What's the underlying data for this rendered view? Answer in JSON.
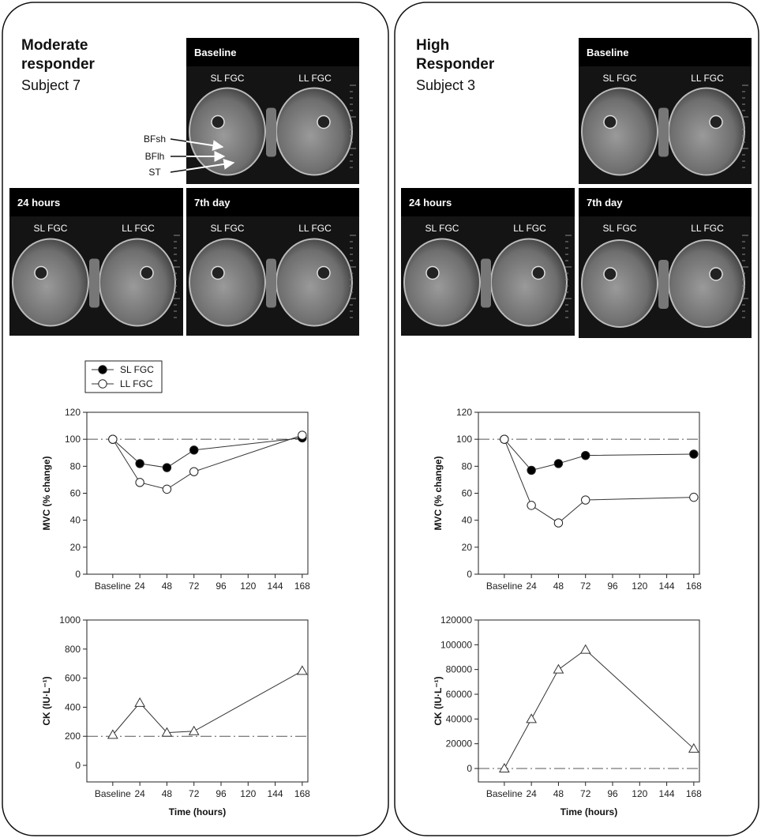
{
  "panels": [
    {
      "title": "Moderate responder",
      "subtitle": "Subject 7",
      "images": [
        {
          "label": "Baseline",
          "left": "SL FGC",
          "right": "LL FGC"
        },
        {
          "label": "24 hours",
          "left": "SL FGC",
          "right": "LL FGC"
        },
        {
          "label": "7th day",
          "left": "SL FGC",
          "right": "LL FGC"
        }
      ],
      "annotations": [
        "BFsh",
        "BFlh",
        "ST"
      ]
    },
    {
      "title": "High Responder",
      "subtitle": "Subject 3",
      "images": [
        {
          "label": "Baseline",
          "left": "SL FGC",
          "right": "LL FGC"
        },
        {
          "label": "24 hours",
          "left": "SL FGC",
          "right": "LL FGC"
        },
        {
          "label": "7th day",
          "left": "SL FGC",
          "right": "LL FGC"
        }
      ]
    }
  ],
  "chart_data": [
    {
      "type": "line",
      "ylabel": "MVC (% change)",
      "legend": true,
      "x": [
        0,
        24,
        48,
        72,
        168
      ],
      "series": [
        {
          "name": "SL FGC",
          "marker": "filled-circle",
          "values": [
            100,
            82,
            79,
            92,
            101
          ]
        },
        {
          "name": "LL FGC",
          "marker": "open-circle",
          "values": [
            100,
            68,
            63,
            76,
            103
          ]
        }
      ],
      "reference_line": 100,
      "xlim": [
        -23,
        173
      ],
      "xticks": [
        {
          "value": 0,
          "label": "Baseline"
        },
        24,
        48,
        72,
        96,
        120,
        144,
        168
      ],
      "ylim": [
        0,
        120
      ],
      "yticks": [
        0,
        20,
        40,
        60,
        80,
        100,
        120
      ]
    },
    {
      "type": "line",
      "ylabel": "CK (IU·L⁻¹)",
      "xlabel": "Time (hours)",
      "x": [
        0,
        24,
        48,
        72,
        168
      ],
      "series": [
        {
          "marker": "open-triangle",
          "values": [
            210,
            430,
            225,
            235,
            650
          ]
        }
      ],
      "reference_line": 200,
      "xlim": [
        -23,
        173
      ],
      "xticks": [
        {
          "value": 0,
          "label": "Baseline"
        },
        24,
        48,
        72,
        96,
        120,
        144,
        168
      ],
      "ylim": [
        -114,
        1000
      ],
      "yticks": [
        0,
        200,
        400,
        600,
        800,
        1000
      ]
    },
    {
      "type": "line",
      "ylabel": "MVC (% change)",
      "x": [
        0,
        24,
        48,
        72,
        168
      ],
      "series": [
        {
          "marker": "filled-circle",
          "values": [
            100,
            77,
            82,
            88,
            89
          ]
        },
        {
          "marker": "open-circle",
          "values": [
            100,
            51,
            38,
            55,
            57
          ]
        }
      ],
      "reference_line": 100,
      "xlim": [
        -23,
        173
      ],
      "xticks": [
        {
          "value": 0,
          "label": "Baseline"
        },
        24,
        48,
        72,
        96,
        120,
        144,
        168
      ],
      "ylim": [
        0,
        120
      ],
      "yticks": [
        0,
        20,
        40,
        60,
        80,
        100,
        120
      ]
    },
    {
      "type": "line",
      "ylabel": "CK (IU·L⁻¹)",
      "xlabel": "Time (hours)",
      "x": [
        0,
        24,
        48,
        72,
        168
      ],
      "series": [
        {
          "marker": "open-triangle",
          "values": [
            0,
            40000,
            80000,
            96000,
            16000
          ]
        }
      ],
      "reference_line": 0,
      "xlim": [
        -23,
        173
      ],
      "xticks": [
        {
          "value": 0,
          "label": "Baseline"
        },
        24,
        48,
        72,
        96,
        120,
        144,
        168
      ],
      "ylim": [
        -10850,
        120000
      ],
      "yticks": [
        0,
        20000,
        40000,
        60000,
        80000,
        100000,
        120000
      ]
    }
  ]
}
